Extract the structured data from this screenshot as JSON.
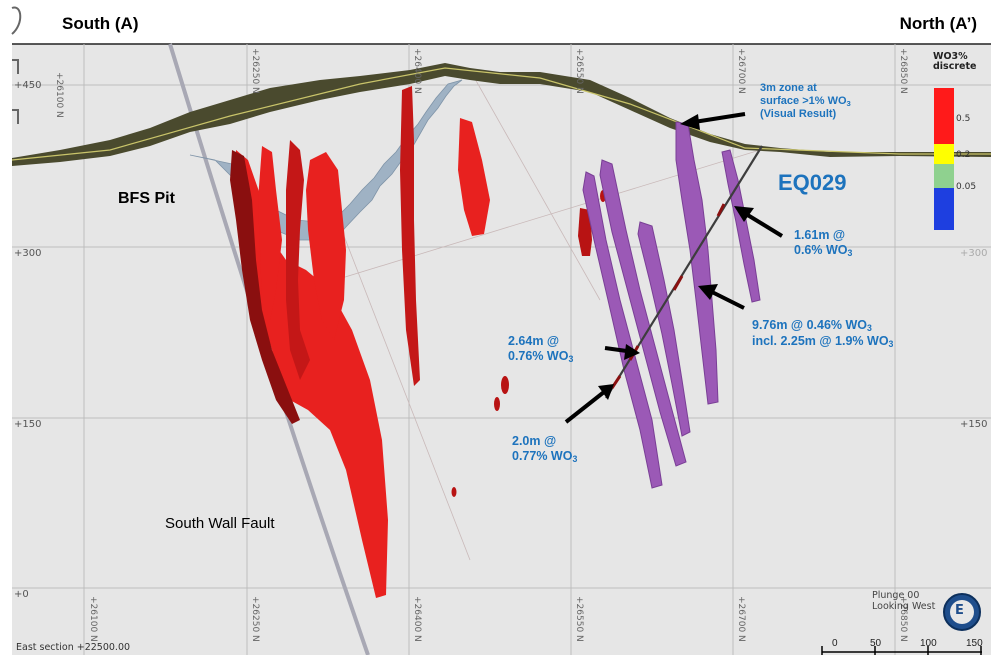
{
  "header": {
    "south": "South (A)",
    "north": "North (A’)"
  },
  "labels": {
    "bfs_pit": "BFS Pit",
    "south_wall_fault": "South Wall Fault",
    "hole_id": "EQ029",
    "surface_zone_1": "3m zone at",
    "surface_zone_2": "surface >1% WO",
    "surface_zone_3": "(Visual Result)",
    "int_161_1": "1.61m @",
    "int_161_2": "0.6% WO",
    "int_976_1": "9.76m @ 0.46% WO",
    "int_976_2": "incl. 2.25m @ 1.9% WO",
    "int_264_1": "2.64m @",
    "int_264_2": "0.76% WO",
    "int_20_1": "2.0m @",
    "int_20_2": "0.77% WO",
    "wo_sub": "3"
  },
  "elevations": [
    "+450",
    "+300",
    "+150",
    "+0"
  ],
  "elevations_right": [
    "+300",
    "+150"
  ],
  "northings_top": [
    "+26100 N",
    "+26250 N",
    "+26400 N",
    "+26550 N",
    "+26700 N",
    "+26850 N"
  ],
  "northings_bottom": [
    "+26100 N",
    "+26250 N",
    "+26400 N",
    "+26550 N",
    "+26700 N",
    "+26850 N"
  ],
  "legend": {
    "title_1": "WO3%",
    "title_2": "discrete",
    "values": [
      "0.5",
      "0.2",
      "0.05"
    ],
    "colors": [
      "#ff1a1a",
      "#ffff00",
      "#8fd18f",
      "#1e3fe0"
    ]
  },
  "view_info": {
    "plunge": "Plunge 00",
    "looking": "Looking West",
    "compass": "E"
  },
  "scale_bar": [
    "0",
    "50",
    "100",
    "150"
  ],
  "section_label": "East section +22500.00",
  "colors": {
    "mineral_red": "#e8211f",
    "dark_red": "#8a0f0f",
    "purple": "#9b59b6",
    "label_blue": "#1d73bd",
    "terrain": "#4a4a2e"
  }
}
